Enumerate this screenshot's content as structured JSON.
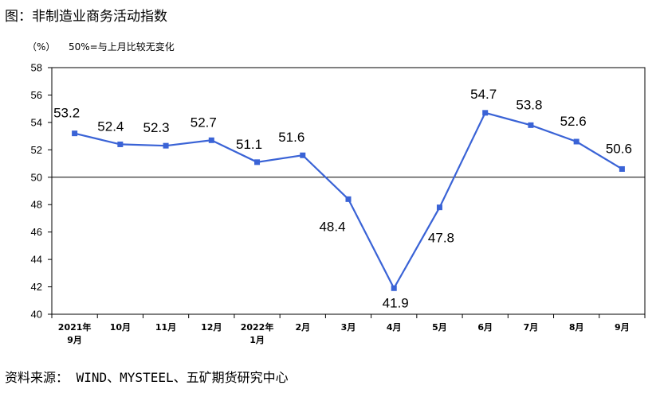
{
  "title": "图：非制造业商务活动指数",
  "source": "资料来源： WIND、MYSTEEL、五矿期货研究中心",
  "chart_data": {
    "type": "line",
    "title": "图：非制造业商务活动指数",
    "ylabel": "（%）",
    "annotation": "50%=与上月比较无变化",
    "ylim": [
      40,
      58
    ],
    "yticks": [
      40,
      42,
      44,
      46,
      48,
      50,
      52,
      54,
      56,
      58
    ],
    "reference_line": 50,
    "grid": false,
    "categories": [
      [
        "2021年",
        "9月"
      ],
      [
        "10月"
      ],
      [
        "11月"
      ],
      [
        "12月"
      ],
      [
        "2022年",
        "1月"
      ],
      [
        "2月"
      ],
      [
        "3月"
      ],
      [
        "4月"
      ],
      [
        "5月"
      ],
      [
        "6月"
      ],
      [
        "7月"
      ],
      [
        "8月"
      ],
      [
        "9月"
      ]
    ],
    "values": [
      53.2,
      52.4,
      52.3,
      52.7,
      51.1,
      51.6,
      48.4,
      41.9,
      47.8,
      54.7,
      53.8,
      52.6,
      50.6
    ],
    "series_color": "#3a63d6"
  }
}
